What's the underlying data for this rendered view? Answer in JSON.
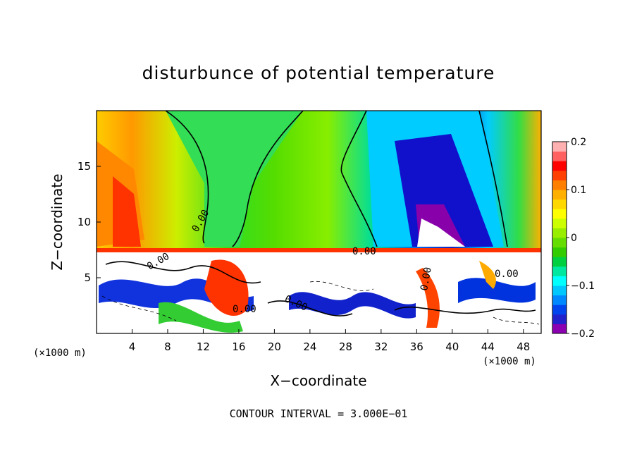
{
  "chart_data": {
    "type": "heatmap",
    "title": "disturbunce of potential temperature",
    "xlabel": "X−coordinate",
    "ylabel": "Z−coordinate",
    "x_unit_note_left": "(×1000 m)",
    "x_unit_note_right": "(×1000 m)",
    "xlim": [
      0,
      50
    ],
    "ylim": [
      0,
      20
    ],
    "x_ticks": [
      4,
      8,
      12,
      16,
      20,
      24,
      28,
      32,
      36,
      40,
      44,
      48
    ],
    "y_ticks": [
      5,
      10,
      15
    ],
    "colorbar": {
      "range": [
        -0.2,
        0.2
      ],
      "tick_values": [
        0.2,
        0.1,
        0,
        -0.1,
        -0.2
      ],
      "tick_labels": [
        "0.2",
        "0.1",
        "0",
        "−0.1",
        "−0.2"
      ],
      "colors": [
        "#8b00b0",
        "#2222cc",
        "#0044ee",
        "#0088ff",
        "#00c8ff",
        "#00ffff",
        "#00e8a0",
        "#00d040",
        "#33cc00",
        "#66dd00",
        "#99ee00",
        "#ccff00",
        "#ffff00",
        "#ffd800",
        "#ffb000",
        "#ff8000",
        "#ff4000",
        "#ff0000",
        "#ff6060",
        "#ffb0b0"
      ]
    },
    "contour_labels": [
      "0.00",
      "0.00",
      "0.00",
      "0.00",
      "0.00",
      "0.00",
      "0.00"
    ],
    "grid": false,
    "legend": "right (colorbar)"
  },
  "footer": {
    "contour_interval": "CONTOUR INTERVAL = 3.000E−01"
  }
}
